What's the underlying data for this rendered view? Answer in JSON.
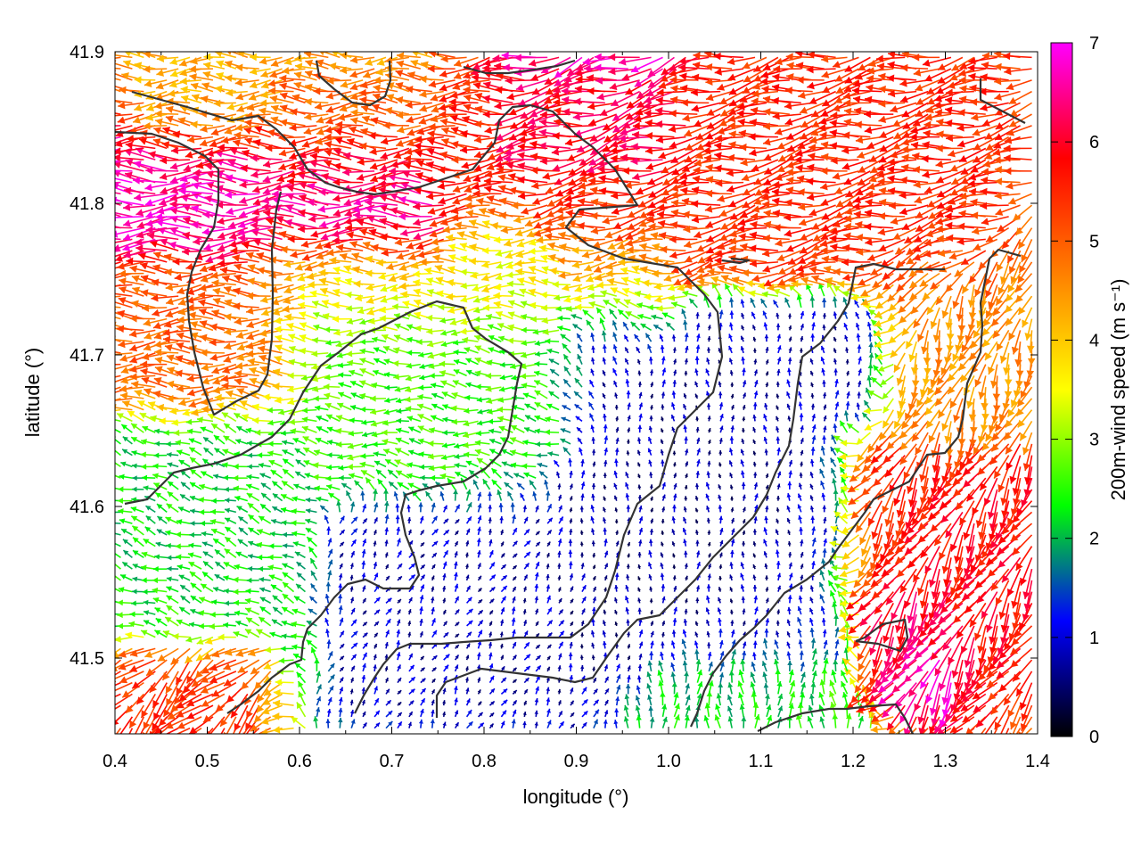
{
  "chart_data": {
    "type": "vector-field",
    "xlabel": "longitude (°)",
    "ylabel": "latitude (°)",
    "xlim": [
      0.4,
      1.4
    ],
    "ylim": [
      41.45,
      41.9
    ],
    "xticks": [
      "0.4",
      "0.5",
      "0.6",
      "0.7",
      "0.8",
      "0.9",
      "1.0",
      "1.1",
      "1.2",
      "1.3",
      "1.4"
    ],
    "yticks": [
      "41.5",
      "41.6",
      "41.7",
      "41.8",
      "41.9"
    ],
    "colorbar": {
      "label": "200m-wind speed (m s⁻¹)",
      "range": [
        0,
        7
      ],
      "ticks": [
        "0",
        "1",
        "2",
        "3",
        "4",
        "5",
        "6",
        "7"
      ],
      "palette": [
        "#000000",
        "#0000ff",
        "#00ff00",
        "#ffff00",
        "#ff8000",
        "#ff0000",
        "#ff00ff"
      ]
    },
    "vector_regions_estimated": [
      {
        "lon": [
          0.4,
          0.75
        ],
        "lat": [
          41.77,
          41.84
        ],
        "speed": 6.8,
        "direction_deg": 180
      },
      {
        "lon": [
          0.6,
          0.9
        ],
        "lat": [
          41.82,
          41.88
        ],
        "speed": 5.5,
        "direction_deg": 180
      },
      {
        "lon": [
          0.85,
          1.0
        ],
        "lat": [
          41.83,
          41.9
        ],
        "speed": 6.8,
        "direction_deg": 200
      },
      {
        "lon": [
          0.9,
          1.35
        ],
        "lat": [
          41.76,
          41.88
        ],
        "speed": 5.5,
        "direction_deg": 190
      },
      {
        "lon": [
          0.45,
          0.75
        ],
        "lat": [
          41.84,
          41.9
        ],
        "speed": 4.2,
        "direction_deg": 180
      },
      {
        "lon": [
          0.4,
          0.6
        ],
        "lat": [
          41.68,
          41.76
        ],
        "speed": 5.0,
        "direction_deg": 180
      },
      {
        "lon": [
          0.6,
          1.0
        ],
        "lat": [
          41.72,
          41.77
        ],
        "speed": 3.5,
        "direction_deg": 180
      },
      {
        "lon": [
          0.6,
          0.9
        ],
        "lat": [
          41.64,
          41.72
        ],
        "speed": 2.5,
        "direction_deg": 175
      },
      {
        "lon": [
          0.9,
          1.2
        ],
        "lat": [
          41.5,
          41.72
        ],
        "speed": 0.6,
        "direction_deg": 90
      },
      {
        "lon": [
          0.65,
          0.9
        ],
        "lat": [
          41.47,
          41.58
        ],
        "speed": 0.8,
        "direction_deg": 60
      },
      {
        "lon": [
          0.4,
          0.6
        ],
        "lat": [
          41.52,
          41.64
        ],
        "speed": 2.2,
        "direction_deg": 160
      },
      {
        "lon": [
          1.2,
          1.4
        ],
        "lat": [
          41.52,
          41.64
        ],
        "speed": 5.8,
        "direction_deg": 240
      },
      {
        "lon": [
          1.22,
          1.3
        ],
        "lat": [
          41.48,
          41.54
        ],
        "speed": 6.8,
        "direction_deg": 240
      },
      {
        "lon": [
          1.28,
          1.4
        ],
        "lat": [
          41.65,
          41.76
        ],
        "speed": 4.5,
        "direction_deg": 250
      },
      {
        "lon": [
          0.4,
          0.55
        ],
        "lat": [
          41.45,
          41.5
        ],
        "speed": 5.5,
        "direction_deg": 225
      },
      {
        "lon": [
          1.0,
          1.2
        ],
        "lat": [
          41.45,
          41.5
        ],
        "speed": 2.2,
        "direction_deg": 90
      }
    ]
  }
}
